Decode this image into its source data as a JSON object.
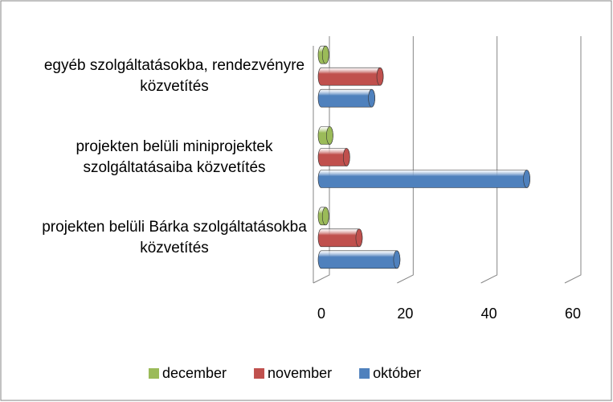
{
  "chart_data": {
    "type": "bar",
    "orientation": "horizontal",
    "style": "3d-cylinder",
    "categories": [
      "projekten belüli Bárka szolgáltatásokba közvetítés",
      "projekten belüli miniprojektek szolgáltatásaiba közvetítés",
      "egyéb szolgáltatásokba, rendezvényre közvetítés"
    ],
    "series": [
      {
        "name": "december",
        "color": "#9bbb59",
        "values": [
          1,
          2,
          1
        ]
      },
      {
        "name": "november",
        "color": "#c0504d",
        "values": [
          9,
          6,
          14
        ]
      },
      {
        "name": "október",
        "color": "#4f81bd",
        "values": [
          18,
          49,
          12
        ]
      }
    ],
    "xlim": [
      0,
      60
    ],
    "xticks": [
      0,
      20,
      40,
      60
    ],
    "grid": true,
    "legend": "bottom"
  }
}
